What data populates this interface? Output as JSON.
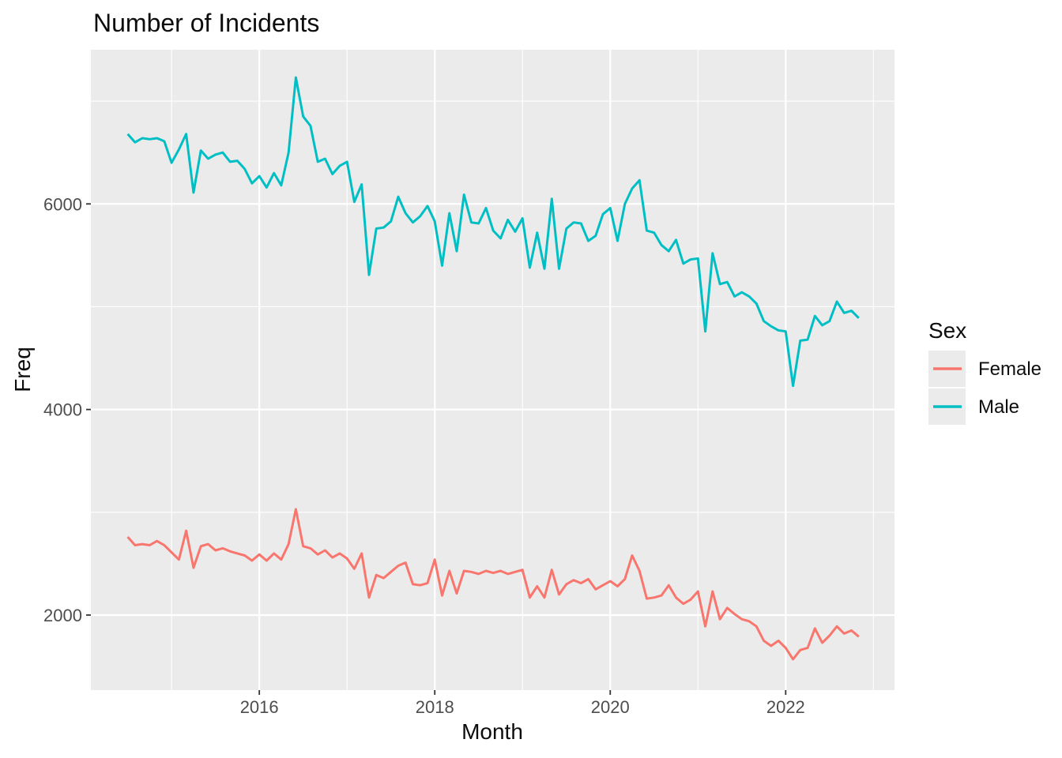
{
  "chart_data": {
    "type": "line",
    "title": "Number of Incidents",
    "xlabel": "Month",
    "ylabel": "Freq",
    "legend_title": "Sex",
    "legend_position": "right",
    "grid": true,
    "panel_background": "#EBEBEB",
    "gridline_color": "#FFFFFF",
    "tick_color": "#333333",
    "tick_label_color": "#4d4d4d",
    "x_unit": "monthly",
    "x_start_month": "2014-07",
    "x_end_month": "2022-11",
    "x_tick_labels": [
      "2016",
      "2018",
      "2020",
      "2022"
    ],
    "x_tick_years": [
      2016,
      2018,
      2020,
      2022
    ],
    "x_minor_years": [
      2015,
      2017,
      2019,
      2021,
      2023
    ],
    "y_tick_labels": [
      "2000",
      "4000",
      "6000"
    ],
    "y_ticks": [
      2000,
      4000,
      6000
    ],
    "y_minor_ticks": [
      3000,
      5000,
      7000
    ],
    "x_domain_years": [
      2014.08,
      2023.24
    ],
    "y_domain": [
      1270,
      7500
    ],
    "series": [
      {
        "name": "Female",
        "color": "#F8766D",
        "values": [
          2760,
          2680,
          2690,
          2680,
          2720,
          2680,
          2610,
          2540,
          2820,
          2460,
          2670,
          2690,
          2630,
          2650,
          2620,
          2600,
          2580,
          2530,
          2590,
          2530,
          2600,
          2540,
          2690,
          3030,
          2670,
          2650,
          2590,
          2630,
          2560,
          2600,
          2550,
          2450,
          2600,
          2170,
          2390,
          2360,
          2420,
          2480,
          2510,
          2300,
          2290,
          2310,
          2540,
          2190,
          2430,
          2210,
          2430,
          2420,
          2400,
          2430,
          2410,
          2430,
          2400,
          2420,
          2440,
          2170,
          2280,
          2170,
          2440,
          2200,
          2300,
          2340,
          2310,
          2350,
          2250,
          2290,
          2330,
          2280,
          2350,
          2580,
          2430,
          2160,
          2170,
          2190,
          2290,
          2170,
          2110,
          2150,
          2230,
          1890,
          2230,
          1960,
          2070,
          2010,
          1960,
          1940,
          1890,
          1750,
          1700,
          1750,
          1680,
          1570,
          1660,
          1680,
          1870,
          1730,
          1800,
          1890,
          1820,
          1850,
          1790
        ]
      },
      {
        "name": "Male",
        "color": "#00BFC4",
        "values": [
          6680,
          6600,
          6640,
          6630,
          6640,
          6610,
          6400,
          6530,
          6680,
          6110,
          6520,
          6440,
          6480,
          6500,
          6410,
          6420,
          6340,
          6200,
          6270,
          6160,
          6300,
          6180,
          6500,
          7230,
          6850,
          6760,
          6410,
          6440,
          6290,
          6370,
          6410,
          6020,
          6190,
          5310,
          5760,
          5770,
          5830,
          6070,
          5910,
          5820,
          5880,
          5980,
          5830,
          5400,
          5910,
          5540,
          6090,
          5820,
          5810,
          5960,
          5740,
          5665,
          5845,
          5730,
          5860,
          5380,
          5720,
          5370,
          6050,
          5370,
          5760,
          5820,
          5810,
          5640,
          5690,
          5900,
          5960,
          5640,
          6000,
          6150,
          6230,
          5740,
          5720,
          5600,
          5540,
          5650,
          5420,
          5460,
          5470,
          4760,
          5520,
          5220,
          5240,
          5100,
          5140,
          5100,
          5030,
          4860,
          4810,
          4770,
          4760,
          4230,
          4670,
          4680,
          4910,
          4820,
          4860,
          5050,
          4940,
          4960,
          4890
        ]
      }
    ]
  }
}
